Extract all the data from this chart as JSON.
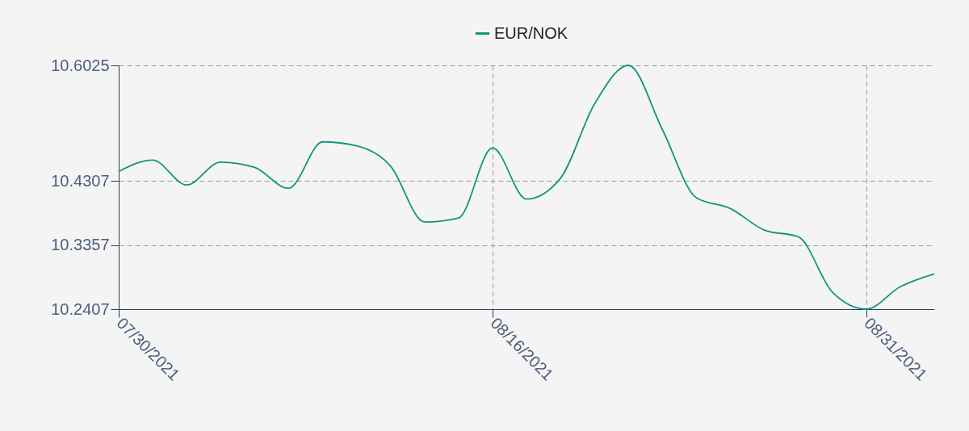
{
  "chart_data": {
    "type": "line",
    "categories": [
      "07/30/2021",
      null,
      null,
      null,
      null,
      null,
      null,
      null,
      null,
      null,
      null,
      "08/16/2021",
      null,
      null,
      null,
      null,
      null,
      null,
      null,
      null,
      null,
      null,
      "08/31/2021",
      null,
      null
    ],
    "series": [
      {
        "name": "EUR/NOK",
        "color": "#12967e",
        "values": [
          10.445,
          10.462,
          10.425,
          10.459,
          10.451,
          10.42,
          10.489,
          10.483,
          10.453,
          10.37,
          10.376,
          10.48,
          10.404,
          10.435,
          10.545,
          10.6025,
          10.507,
          10.406,
          10.39,
          10.358,
          10.348,
          10.266,
          10.2407,
          10.274,
          10.293
        ]
      }
    ],
    "ylim": [
      10.2407,
      10.6025
    ],
    "yticks": [
      10.2407,
      10.3357,
      10.4307,
      10.6025
    ],
    "grid": true,
    "legend": "top",
    "marker": "none",
    "line_style": "solid"
  }
}
